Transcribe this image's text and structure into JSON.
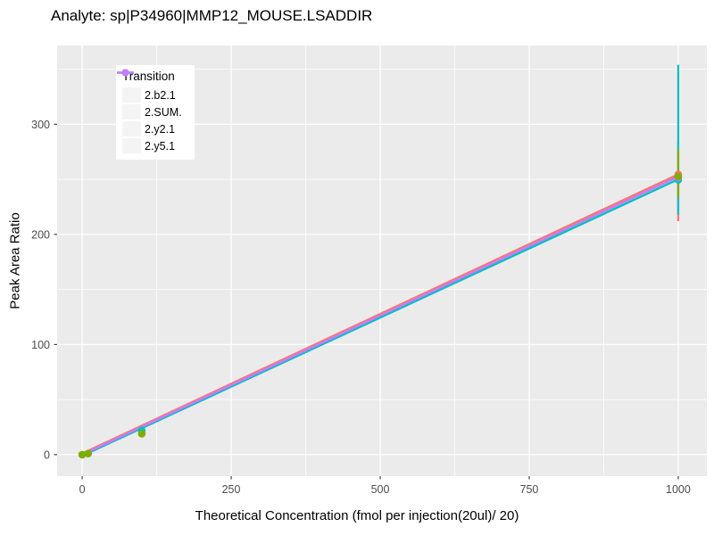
{
  "header": {
    "title": "Analyte: sp|P34960|MMP12_MOUSE.LSADDIR"
  },
  "x_axis": {
    "label": "Theoretical Concentration (fmol per injection(20ul)/ 20)",
    "tick_labels": [
      "0",
      "250",
      "500",
      "750",
      "1000"
    ]
  },
  "y_axis": {
    "label": "Peak Area Ratio",
    "tick_labels": [
      "0",
      "100",
      "200",
      "300"
    ]
  },
  "legend": {
    "title": "Transition",
    "entries": [
      {
        "label": "2.b2.1",
        "color": "#F8766D"
      },
      {
        "label": "2.SUM.",
        "color": "#7CAE00"
      },
      {
        "label": "2.y2.1",
        "color": "#00BFC4"
      },
      {
        "label": "2.y5.1",
        "color": "#C77CFF"
      }
    ]
  },
  "chart_data": {
    "type": "line",
    "title": "Analyte: sp|P34960|MMP12_MOUSE.LSADDIR",
    "xlabel": "Theoretical Concentration (fmol per injection(20ul)/ 20)",
    "ylabel": "Peak Area Ratio",
    "xlim": [
      -42,
      1048
    ],
    "ylim": [
      -19.5,
      371.5
    ],
    "x_ticks": [
      0,
      250,
      500,
      750,
      1000
    ],
    "y_ticks": [
      0,
      100,
      200,
      300
    ],
    "x_minor": [
      125,
      375,
      625,
      875
    ],
    "y_minor": [
      50,
      150,
      250,
      350
    ],
    "grid": "on",
    "legend_position": "inside-top-left",
    "panel_background": "#EBEBEB",
    "gridline_color": "#FFFFFF",
    "tick_mark_color": "#333333",
    "series": [
      {
        "name": "2.b2.1",
        "color": "#F8766D",
        "line": {
          "x": [
            0,
            1000
          ],
          "y": [
            1.0,
            254.5
          ]
        },
        "points": [
          [
            1000,
            254.5
          ]
        ],
        "errorbars": [
          {
            "x": 1000,
            "ymin": 212,
            "ymax": 285
          }
        ]
      },
      {
        "name": "2.SUM.",
        "color": "#7CAE00",
        "line": {
          "x": [
            0,
            1000
          ],
          "y": [
            0,
            252.5
          ]
        },
        "points": [
          [
            0,
            0
          ],
          [
            10,
            1
          ],
          [
            100,
            19
          ],
          [
            1000,
            252.5
          ]
        ],
        "errorbars": [
          {
            "x": 1000,
            "ymin": 233,
            "ymax": 277
          }
        ]
      },
      {
        "name": "2.y2.1",
        "color": "#00BFC4",
        "line": {
          "x": [
            0,
            1000
          ],
          "y": [
            -1,
            250
          ]
        },
        "points": [
          [
            100,
            22
          ],
          [
            1000,
            249.5
          ]
        ],
        "errorbars": [
          {
            "x": 1000,
            "ymin": 218,
            "ymax": 354
          }
        ]
      },
      {
        "name": "2.y5.1",
        "color": "#C77CFF",
        "line": {
          "x": [
            0,
            1000
          ],
          "y": [
            0,
            252.5
          ]
        },
        "points": [
          [
            1000,
            251.5
          ]
        ],
        "errorbars": [
          {
            "x": 1000,
            "ymin": 225,
            "ymax": 255
          }
        ]
      }
    ],
    "errorbar_draw_order": [
      0,
      3,
      2,
      1
    ],
    "line_draw_order": [
      1,
      0,
      2,
      3
    ],
    "point_draw_order": [
      0,
      2,
      3,
      1
    ]
  }
}
